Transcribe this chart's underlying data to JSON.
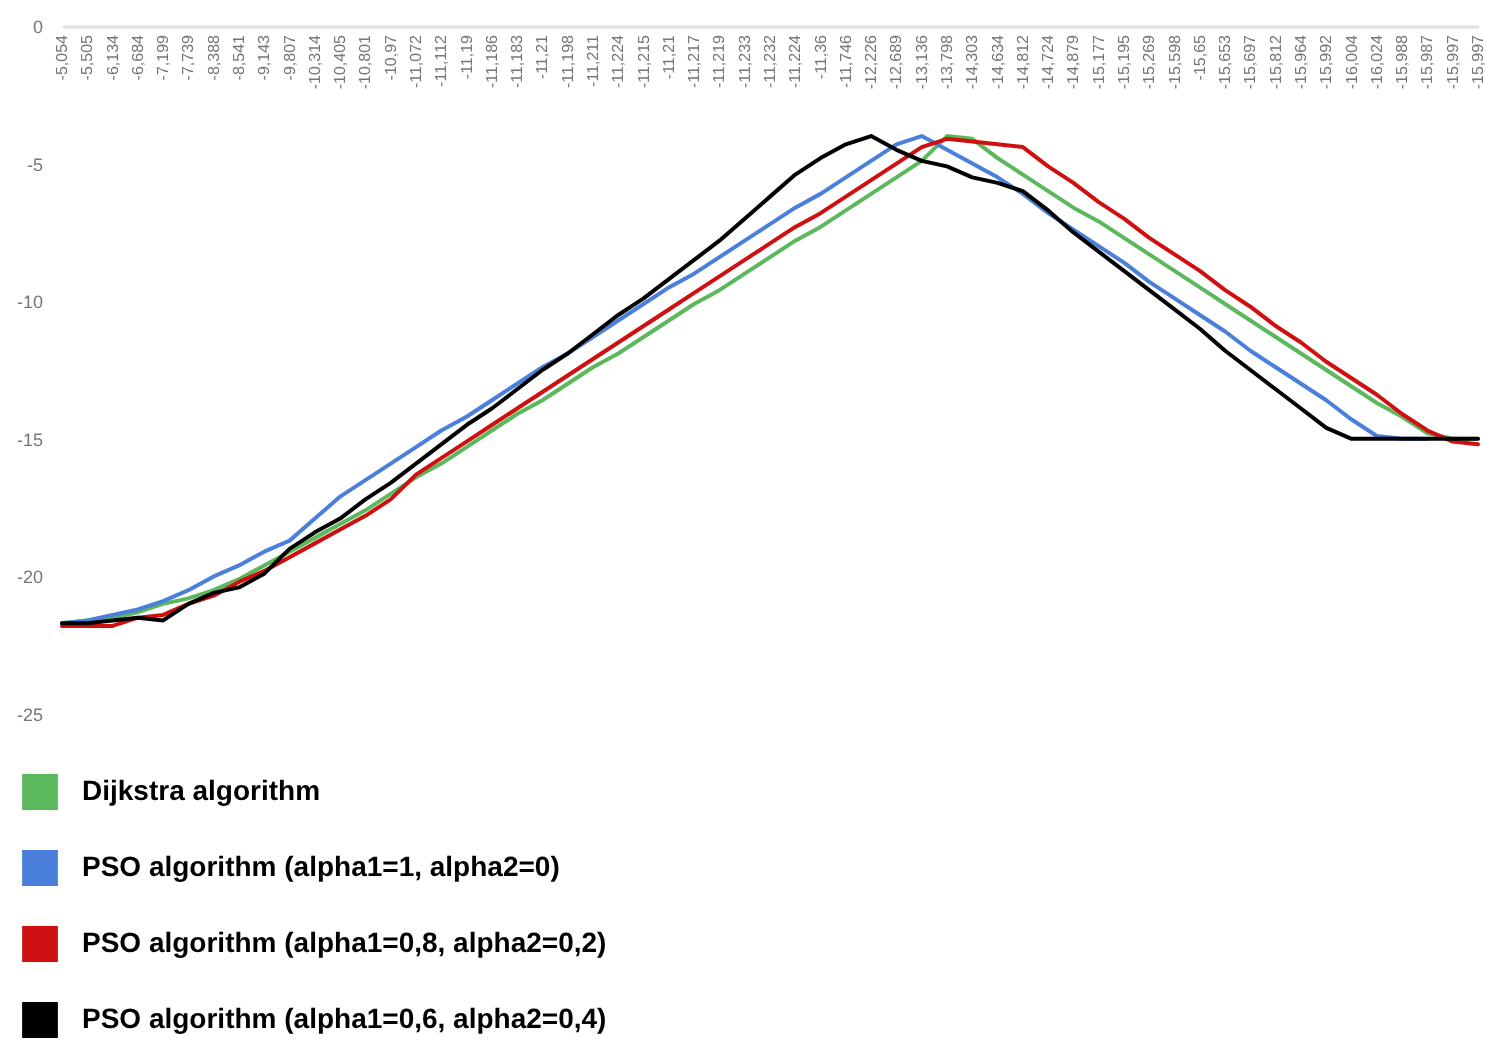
{
  "chart_data": {
    "type": "line",
    "categories": [
      "-5,054",
      "-5,505",
      "-6,134",
      "-6,684",
      "-7,199",
      "-7,739",
      "-8,388",
      "-8,541",
      "-9,143",
      "-9,807",
      "-10,314",
      "-10,405",
      "-10,801",
      "-10,97",
      "-11,072",
      "-11,112",
      "-11,19",
      "-11,186",
      "-11,183",
      "-11,21",
      "-11,198",
      "-11,211",
      "-11,224",
      "-11,215",
      "-11,21",
      "-11,217",
      "-11,219",
      "-11,233",
      "-11,232",
      "-11,224",
      "-11,36",
      "-11,746",
      "-12,226",
      "-12,689",
      "-13,136",
      "-13,798",
      "-14,303",
      "-14,634",
      "-14,812",
      "-14,724",
      "-14,879",
      "-15,177",
      "-15,195",
      "-15,269",
      "-15,598",
      "-15,65",
      "-15,653",
      "-15,697",
      "-15,812",
      "-15,964",
      "-15,992",
      "-16,004",
      "-16,024",
      "-15,988",
      "-15,987",
      "-15,997",
      "-15,997"
    ],
    "series": [
      {
        "name": "Dijkstra algorithm",
        "color": "#5cb85c",
        "values": [
          -21.7,
          -21.6,
          -21.5,
          -21.3,
          -21.0,
          -20.8,
          -20.5,
          -20.1,
          -19.6,
          -19.1,
          -18.6,
          -18.1,
          -17.6,
          -17.0,
          -16.4,
          -15.9,
          -15.3,
          -14.7,
          -14.1,
          -13.6,
          -13.0,
          -12.4,
          -11.9,
          -11.3,
          -10.7,
          -10.1,
          -9.6,
          -9.0,
          -8.4,
          -7.8,
          -7.3,
          -6.7,
          -6.1,
          -5.5,
          -4.9,
          -4.0,
          -4.1,
          -4.8,
          -5.4,
          -6.0,
          -6.6,
          -7.1,
          -7.7,
          -8.3,
          -8.9,
          -9.5,
          -10.1,
          -10.7,
          -11.3,
          -11.9,
          -12.5,
          -13.1,
          -13.7,
          -14.2,
          -14.8,
          -15.0,
          -15.0
        ]
      },
      {
        "name": "PSO algorithm (alpha1=1, alpha2=0)",
        "color": "#4a7fdb",
        "values": [
          -21.7,
          -21.6,
          -21.4,
          -21.2,
          -20.9,
          -20.5,
          -20.0,
          -19.6,
          -19.1,
          -18.7,
          -17.9,
          -17.1,
          -16.5,
          -15.9,
          -15.3,
          -14.7,
          -14.2,
          -13.6,
          -13.0,
          -12.4,
          -11.9,
          -11.3,
          -10.7,
          -10.1,
          -9.5,
          -9.0,
          -8.4,
          -7.8,
          -7.2,
          -6.6,
          -6.1,
          -5.5,
          -4.9,
          -4.3,
          -4.0,
          -4.5,
          -5.0,
          -5.5,
          -6.1,
          -6.8,
          -7.4,
          -8.0,
          -8.6,
          -9.3,
          -9.9,
          -10.5,
          -11.1,
          -11.8,
          -12.4,
          -13.0,
          -13.6,
          -14.3,
          -14.9,
          -15.0,
          -15.0,
          null,
          null
        ]
      },
      {
        "name": "PSO algorithm (alpha1=0,8, alpha2=0,2)",
        "color": "#d01010",
        "values": [
          -21.8,
          -21.8,
          -21.8,
          -21.5,
          -21.4,
          -21.0,
          -20.7,
          -20.2,
          -19.8,
          -19.3,
          -18.8,
          -18.3,
          -17.8,
          -17.2,
          -16.3,
          -15.7,
          -15.1,
          -14.5,
          -13.9,
          -13.3,
          -12.7,
          -12.1,
          -11.5,
          -10.9,
          -10.3,
          -9.7,
          -9.1,
          -8.5,
          -7.9,
          -7.3,
          -6.8,
          -6.2,
          -5.6,
          -5.0,
          -4.4,
          -4.1,
          -4.2,
          -4.3,
          -4.4,
          -5.1,
          -5.7,
          -6.4,
          -7.0,
          -7.7,
          -8.3,
          -8.9,
          -9.6,
          -10.2,
          -10.9,
          -11.5,
          -12.2,
          -12.8,
          -13.4,
          -14.1,
          -14.7,
          -15.1,
          -15.2
        ]
      },
      {
        "name": "PSO algorithm (alpha1=0,6, alpha2=0,4)",
        "color": "#000000",
        "values": [
          -21.7,
          -21.7,
          -21.6,
          -21.5,
          -21.6,
          -21.0,
          -20.6,
          -20.4,
          -19.9,
          -19.0,
          -18.4,
          -17.9,
          -17.2,
          -16.6,
          -15.9,
          -15.2,
          -14.5,
          -13.9,
          -13.2,
          -12.5,
          -11.9,
          -11.2,
          -10.5,
          -9.9,
          -9.2,
          -8.5,
          -7.8,
          -7.0,
          -6.2,
          -5.4,
          -4.8,
          -4.3,
          -4.0,
          -4.5,
          -4.9,
          -5.1,
          -5.5,
          -5.7,
          -6.0,
          -6.7,
          -7.5,
          -8.2,
          -8.9,
          -9.6,
          -10.3,
          -11.0,
          -11.8,
          -12.5,
          -13.2,
          -13.9,
          -14.6,
          -15.0,
          -15.0,
          -15.0,
          -15.0,
          -15.0,
          -15.0
        ]
      }
    ],
    "ylim": [
      -25,
      0
    ],
    "yticks": [
      -25,
      -20,
      -15,
      -10,
      -5,
      0
    ],
    "grid": false,
    "legend": "bottom",
    "marker": "none",
    "line_style": "solid"
  }
}
